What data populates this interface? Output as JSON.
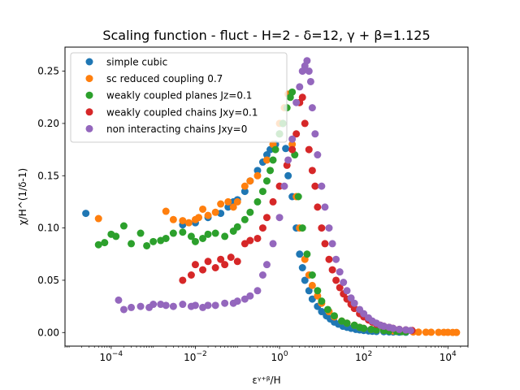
{
  "chart_data": {
    "type": "scatter",
    "title": "Scaling function - fluct - H=2 - δ=12, γ + β=1.125",
    "xlabel": "εᵞ⁺ᵝ/H",
    "ylabel": "χ/H^(1/δ-1)",
    "xscale": "log",
    "xlim": [
      8e-06,
      30000
    ],
    "ylim": [
      -0.013,
      0.273
    ],
    "x_ticks": [
      {
        "value": 0.0001,
        "base": "10",
        "exp": "−4"
      },
      {
        "value": 0.01,
        "base": "10",
        "exp": "−2"
      },
      {
        "value": 1,
        "base": "10",
        "exp": "0"
      },
      {
        "value": 100,
        "base": "10",
        "exp": "2"
      },
      {
        "value": 10000,
        "base": "10",
        "exp": "4"
      }
    ],
    "y_ticks": [
      {
        "value": 0.0,
        "label": "0.00"
      },
      {
        "value": 0.05,
        "label": "0.05"
      },
      {
        "value": 0.1,
        "label": "0.10"
      },
      {
        "value": 0.15,
        "label": "0.15"
      },
      {
        "value": 0.2,
        "label": "0.20"
      },
      {
        "value": 0.25,
        "label": "0.25"
      }
    ],
    "grid": false,
    "legend_position": "top-left",
    "series": [
      {
        "name": "simple cubic",
        "color": "#1f77b4",
        "points": [
          [
            2.5e-05,
            0.114
          ],
          [
            0.005,
            0.103
          ],
          [
            0.01,
            0.105
          ],
          [
            0.02,
            0.11
          ],
          [
            0.04,
            0.114
          ],
          [
            0.06,
            0.12
          ],
          [
            0.08,
            0.125
          ],
          [
            0.1,
            0.127
          ],
          [
            0.15,
            0.135
          ],
          [
            0.2,
            0.145
          ],
          [
            0.3,
            0.155
          ],
          [
            0.4,
            0.163
          ],
          [
            0.5,
            0.17
          ],
          [
            0.6,
            0.175
          ],
          [
            0.8,
            0.18
          ],
          [
            1.0,
            0.19
          ],
          [
            1.2,
            0.2
          ],
          [
            1.4,
            0.176
          ],
          [
            1.6,
            0.15
          ],
          [
            2.0,
            0.13
          ],
          [
            2.5,
            0.1
          ],
          [
            3.0,
            0.075
          ],
          [
            3.5,
            0.062
          ],
          [
            4.0,
            0.05
          ],
          [
            5.0,
            0.04
          ],
          [
            6.0,
            0.032
          ],
          [
            8.0,
            0.025
          ],
          [
            10,
            0.02
          ],
          [
            13,
            0.016
          ],
          [
            16,
            0.013
          ],
          [
            20,
            0.01
          ],
          [
            25,
            0.008
          ],
          [
            32,
            0.006
          ],
          [
            40,
            0.005
          ],
          [
            50,
            0.004
          ],
          [
            65,
            0.003
          ],
          [
            80,
            0.0025
          ],
          [
            100,
            0.002
          ],
          [
            130,
            0.0015
          ],
          [
            160,
            0.0012
          ],
          [
            200,
            0.001
          ],
          [
            300,
            0.0008
          ],
          [
            400,
            0.0006
          ],
          [
            500,
            0.0005
          ],
          [
            700,
            0.0004
          ],
          [
            1000,
            0.0003
          ]
        ]
      },
      {
        "name": "sc reduced coupling 0.7",
        "color": "#ff7f0e",
        "points": [
          [
            5e-05,
            0.109
          ],
          [
            0.002,
            0.116
          ],
          [
            0.003,
            0.108
          ],
          [
            0.005,
            0.107
          ],
          [
            0.007,
            0.105
          ],
          [
            0.01,
            0.108
          ],
          [
            0.012,
            0.11
          ],
          [
            0.015,
            0.118
          ],
          [
            0.02,
            0.112
          ],
          [
            0.03,
            0.115
          ],
          [
            0.04,
            0.123
          ],
          [
            0.06,
            0.125
          ],
          [
            0.08,
            0.12
          ],
          [
            0.1,
            0.125
          ],
          [
            0.15,
            0.14
          ],
          [
            0.2,
            0.145
          ],
          [
            0.3,
            0.15
          ],
          [
            0.5,
            0.165
          ],
          [
            0.7,
            0.18
          ],
          [
            1.0,
            0.2
          ],
          [
            1.3,
            0.215
          ],
          [
            1.6,
            0.228
          ],
          [
            2.0,
            0.18
          ],
          [
            2.5,
            0.13
          ],
          [
            3.0,
            0.1
          ],
          [
            4.0,
            0.07
          ],
          [
            5.0,
            0.055
          ],
          [
            6.0,
            0.045
          ],
          [
            8.0,
            0.035
          ],
          [
            10,
            0.028
          ],
          [
            15,
            0.02
          ],
          [
            20,
            0.015
          ],
          [
            30,
            0.011
          ],
          [
            40,
            0.009
          ],
          [
            60,
            0.007
          ],
          [
            80,
            0.005
          ],
          [
            100,
            0.004
          ],
          [
            150,
            0.003
          ],
          [
            200,
            0.0025
          ],
          [
            300,
            0.002
          ],
          [
            500,
            0.0015
          ],
          [
            800,
            0.001
          ],
          [
            1000,
            0.0008
          ],
          [
            1500,
            0.0005
          ],
          [
            2000,
            0.0004
          ],
          [
            3000,
            0.0003
          ],
          [
            4000,
            0.0003
          ],
          [
            6000,
            0.0002
          ],
          [
            8000,
            0.0002
          ],
          [
            10000,
            0.0002
          ],
          [
            13000,
            0.0001
          ],
          [
            16000,
            0.0001
          ]
        ]
      },
      {
        "name": "weakly coupled planes Jz=0.1",
        "color": "#2ca02c",
        "points": [
          [
            5e-05,
            0.084
          ],
          [
            7e-05,
            0.086
          ],
          [
            0.0001,
            0.094
          ],
          [
            0.00013,
            0.092
          ],
          [
            0.0002,
            0.102
          ],
          [
            0.0003,
            0.085
          ],
          [
            0.0005,
            0.095
          ],
          [
            0.0007,
            0.083
          ],
          [
            0.001,
            0.087
          ],
          [
            0.0015,
            0.088
          ],
          [
            0.002,
            0.09
          ],
          [
            0.003,
            0.095
          ],
          [
            0.005,
            0.096
          ],
          [
            0.008,
            0.092
          ],
          [
            0.01,
            0.087
          ],
          [
            0.015,
            0.09
          ],
          [
            0.02,
            0.094
          ],
          [
            0.03,
            0.095
          ],
          [
            0.05,
            0.092
          ],
          [
            0.08,
            0.097
          ],
          [
            0.1,
            0.101
          ],
          [
            0.15,
            0.108
          ],
          [
            0.2,
            0.115
          ],
          [
            0.3,
            0.125
          ],
          [
            0.4,
            0.135
          ],
          [
            0.5,
            0.145
          ],
          [
            0.6,
            0.155
          ],
          [
            0.7,
            0.165
          ],
          [
            0.8,
            0.175
          ],
          [
            1.0,
            0.19
          ],
          [
            1.2,
            0.2
          ],
          [
            1.5,
            0.215
          ],
          [
            1.8,
            0.225
          ],
          [
            2.0,
            0.23
          ],
          [
            2.3,
            0.17
          ],
          [
            2.8,
            0.13
          ],
          [
            3.5,
            0.1
          ],
          [
            4.5,
            0.075
          ],
          [
            6,
            0.055
          ],
          [
            8,
            0.04
          ],
          [
            10,
            0.03
          ],
          [
            14,
            0.022
          ],
          [
            20,
            0.016
          ],
          [
            30,
            0.011
          ],
          [
            40,
            0.009
          ],
          [
            60,
            0.007
          ],
          [
            80,
            0.005
          ],
          [
            100,
            0.004
          ],
          [
            150,
            0.003
          ],
          [
            200,
            0.0025
          ],
          [
            300,
            0.002
          ],
          [
            400,
            0.0015
          ],
          [
            600,
            0.001
          ],
          [
            800,
            0.0008
          ],
          [
            1000,
            0.0006
          ]
        ]
      },
      {
        "name": "weakly coupled chains Jxy=0.1",
        "color": "#d62728",
        "points": [
          [
            0.005,
            0.05
          ],
          [
            0.008,
            0.055
          ],
          [
            0.01,
            0.065
          ],
          [
            0.015,
            0.06
          ],
          [
            0.02,
            0.068
          ],
          [
            0.03,
            0.062
          ],
          [
            0.04,
            0.07
          ],
          [
            0.05,
            0.065
          ],
          [
            0.07,
            0.072
          ],
          [
            0.1,
            0.068
          ],
          [
            0.15,
            0.085
          ],
          [
            0.2,
            0.088
          ],
          [
            0.3,
            0.09
          ],
          [
            0.4,
            0.1
          ],
          [
            0.5,
            0.11
          ],
          [
            0.7,
            0.125
          ],
          [
            1.0,
            0.14
          ],
          [
            1.5,
            0.16
          ],
          [
            2.0,
            0.175
          ],
          [
            2.5,
            0.19
          ],
          [
            3.0,
            0.22
          ],
          [
            3.5,
            0.225
          ],
          [
            4.0,
            0.2
          ],
          [
            5.0,
            0.175
          ],
          [
            6.0,
            0.155
          ],
          [
            7.0,
            0.14
          ],
          [
            8.0,
            0.12
          ],
          [
            10,
            0.1
          ],
          [
            12,
            0.085
          ],
          [
            15,
            0.07
          ],
          [
            18,
            0.06
          ],
          [
            22,
            0.05
          ],
          [
            27,
            0.043
          ],
          [
            33,
            0.037
          ],
          [
            40,
            0.032
          ],
          [
            50,
            0.027
          ],
          [
            60,
            0.023
          ],
          [
            80,
            0.018
          ],
          [
            100,
            0.015
          ],
          [
            130,
            0.012
          ],
          [
            160,
            0.01
          ],
          [
            200,
            0.008
          ],
          [
            250,
            0.007
          ],
          [
            300,
            0.006
          ],
          [
            400,
            0.005
          ],
          [
            500,
            0.004
          ],
          [
            700,
            0.003
          ],
          [
            1000,
            0.0025
          ],
          [
            1400,
            0.002
          ]
        ]
      },
      {
        "name": "non interacting chains Jxy=0",
        "color": "#9467bd",
        "points": [
          [
            0.00015,
            0.031
          ],
          [
            0.0002,
            0.022
          ],
          [
            0.0003,
            0.024
          ],
          [
            0.0005,
            0.025
          ],
          [
            0.0008,
            0.024
          ],
          [
            0.001,
            0.027
          ],
          [
            0.0015,
            0.027
          ],
          [
            0.002,
            0.026
          ],
          [
            0.003,
            0.025
          ],
          [
            0.005,
            0.027
          ],
          [
            0.008,
            0.025
          ],
          [
            0.01,
            0.026
          ],
          [
            0.015,
            0.024
          ],
          [
            0.02,
            0.026
          ],
          [
            0.03,
            0.026
          ],
          [
            0.05,
            0.028
          ],
          [
            0.08,
            0.028
          ],
          [
            0.1,
            0.03
          ],
          [
            0.15,
            0.032
          ],
          [
            0.2,
            0.035
          ],
          [
            0.3,
            0.04
          ],
          [
            0.4,
            0.055
          ],
          [
            0.5,
            0.065
          ],
          [
            0.7,
            0.085
          ],
          [
            1.0,
            0.11
          ],
          [
            1.3,
            0.14
          ],
          [
            1.6,
            0.165
          ],
          [
            2.0,
            0.185
          ],
          [
            2.5,
            0.22
          ],
          [
            3.0,
            0.235
          ],
          [
            3.5,
            0.25
          ],
          [
            4.0,
            0.255
          ],
          [
            4.5,
            0.26
          ],
          [
            5.0,
            0.25
          ],
          [
            5.5,
            0.24
          ],
          [
            6.0,
            0.215
          ],
          [
            7.0,
            0.19
          ],
          [
            8.0,
            0.17
          ],
          [
            10,
            0.14
          ],
          [
            12,
            0.12
          ],
          [
            15,
            0.1
          ],
          [
            18,
            0.085
          ],
          [
            22,
            0.07
          ],
          [
            27,
            0.058
          ],
          [
            33,
            0.048
          ],
          [
            40,
            0.04
          ],
          [
            50,
            0.033
          ],
          [
            60,
            0.028
          ],
          [
            80,
            0.022
          ],
          [
            100,
            0.018
          ],
          [
            130,
            0.014
          ],
          [
            160,
            0.011
          ],
          [
            200,
            0.009
          ],
          [
            250,
            0.007
          ],
          [
            300,
            0.006
          ],
          [
            400,
            0.005
          ],
          [
            500,
            0.004
          ],
          [
            700,
            0.003
          ],
          [
            1000,
            0.0025
          ],
          [
            1300,
            0.002
          ]
        ]
      }
    ]
  }
}
